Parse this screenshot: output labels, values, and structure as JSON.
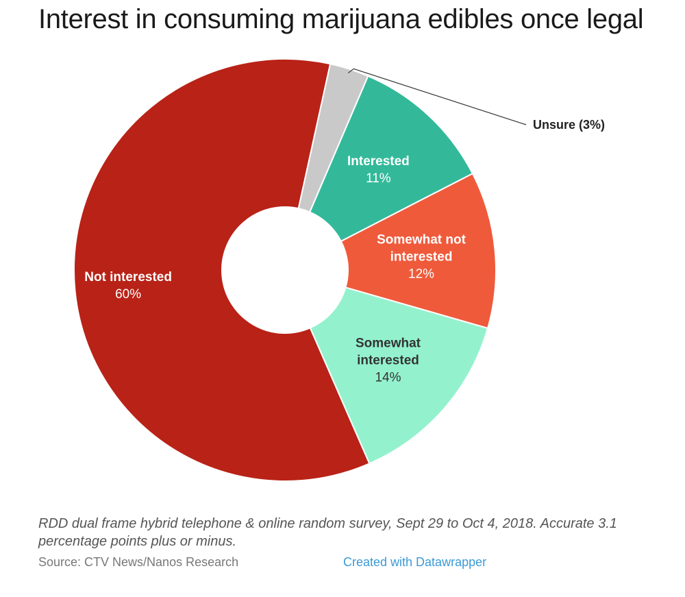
{
  "chart_data": {
    "type": "pie",
    "variant": "donut",
    "title": "Interest in consuming marijuana edibles once legal",
    "slices": [
      {
        "label_line1": "Not interested",
        "label_line2": "",
        "value": 60,
        "value_label": "60%",
        "color": "#b92217",
        "text_color": "#ffffff"
      },
      {
        "label": "Unsure (3%)",
        "value": 3,
        "color": "#c9c9c9",
        "text_color": "#222222",
        "external": true
      },
      {
        "label_line1": "Interested",
        "label_line2": "",
        "value": 11,
        "value_label": "11%",
        "color": "#33b99a",
        "text_color": "#ffffff"
      },
      {
        "label_line1": "Somewhat not",
        "label_line2": "interested",
        "value": 12,
        "value_label": "12%",
        "color": "#ef5a3b",
        "text_color": "#ffffff"
      },
      {
        "label_line1": "Somewhat",
        "label_line2": "interested",
        "value": 14,
        "value_label": "14%",
        "color": "#93f2cd",
        "text_color": "#333333"
      }
    ]
  },
  "notes": "RDD dual frame hybrid telephone & online random survey, Sept 29 to Oct 4, 2018. Accurate 3.1 percentage points plus or minus.",
  "source": "Source: CTV News/Nanos Research",
  "credit": "Created with Datawrapper"
}
